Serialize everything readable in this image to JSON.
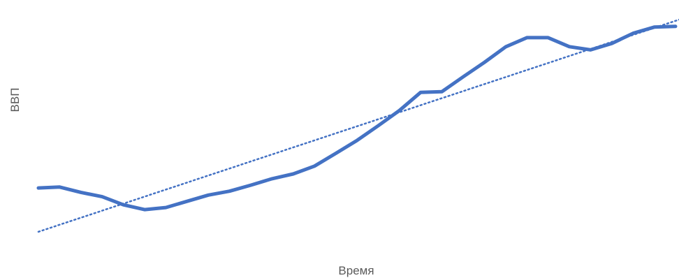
{
  "chart_data": {
    "type": "line",
    "title": "",
    "xlabel": "Время",
    "ylabel": "ВВП",
    "grid": false,
    "legend": "none",
    "ylim": [
      0,
      100
    ],
    "x": [
      1,
      2,
      3,
      4,
      5,
      6,
      7,
      8,
      9,
      10,
      11,
      12,
      13,
      14,
      15,
      16,
      17,
      18,
      19,
      20,
      21,
      22,
      23,
      24,
      25,
      26,
      27,
      28,
      29,
      30,
      31
    ],
    "series": [
      {
        "color": "#4472C4",
        "values": [
          23.0,
          23.4,
          21.1,
          19.2,
          15.7,
          13.6,
          14.5,
          17.2,
          19.9,
          21.6,
          24.2,
          27.0,
          29.1,
          32.5,
          38.0,
          43.6,
          50.0,
          56.6,
          64.5,
          64.8,
          71.2,
          77.5,
          84.2,
          88.2,
          88.2,
          84.3,
          82.9,
          85.7,
          90.1,
          92.8,
          93.1
        ]
      }
    ],
    "trendline": {
      "style": "dotted",
      "color": "#4472C4",
      "start": [
        1,
        4.0
      ],
      "end": [
        31,
        95.5
      ]
    }
  }
}
